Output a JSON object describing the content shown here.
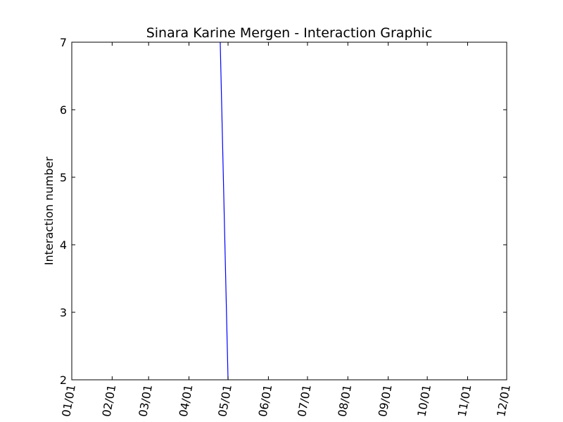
{
  "chart_data": {
    "type": "line",
    "title": "Sinara Karine Mergen - Interaction Graphic",
    "xlabel": "",
    "ylabel": "Interaction number",
    "x_ticks": [
      "01/01",
      "02/01",
      "03/01",
      "04/01",
      "05/01",
      "06/01",
      "07/01",
      "08/01",
      "09/01",
      "10/01",
      "11/01",
      "12/01"
    ],
    "y_ticks": [
      2,
      3,
      4,
      5,
      6,
      7
    ],
    "ylim": [
      2,
      7
    ],
    "grid": false,
    "line_color": "#0000ff",
    "series": [
      {
        "points": [
          {
            "x": "04/25",
            "y": 7
          },
          {
            "x": "05/01",
            "y": 2
          }
        ]
      }
    ]
  }
}
